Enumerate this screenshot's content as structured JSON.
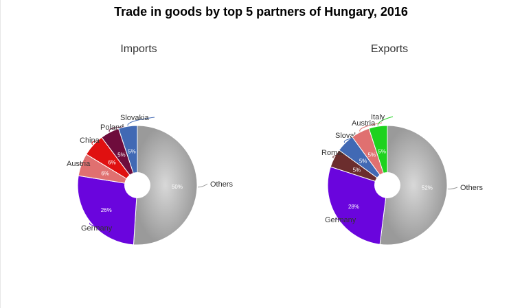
{
  "title": "Trade in goods by top 5 partners of Hungary, 2016",
  "colors": {
    "Others": "#a9a9a9",
    "Germany": "#6a05dd",
    "Austria": "#e07070",
    "China": "#e01010",
    "Poland": "#6e0c3c",
    "Slovakia": "#4169b4",
    "Romania": "#6b2d2d",
    "Italy": "#1ed21e"
  },
  "chart_data": [
    {
      "type": "pie",
      "title": "Imports",
      "slices": [
        {
          "label": "Others",
          "value": 50,
          "text": "50%"
        },
        {
          "label": "Germany",
          "value": 26,
          "text": "26%"
        },
        {
          "label": "Austria",
          "value": 6,
          "text": "6%"
        },
        {
          "label": "China",
          "value": 6,
          "text": "6%"
        },
        {
          "label": "Poland",
          "value": 5,
          "text": "5%"
        },
        {
          "label": "Slovakia",
          "value": 5,
          "text": "5%"
        }
      ]
    },
    {
      "type": "pie",
      "title": "Exports",
      "slices": [
        {
          "label": "Others",
          "value": 52,
          "text": "52%"
        },
        {
          "label": "Germany",
          "value": 28,
          "text": "28%"
        },
        {
          "label": "Romania",
          "value": 5,
          "text": "5%"
        },
        {
          "label": "Slovakia",
          "value": 5,
          "text": "5%"
        },
        {
          "label": "Austria",
          "value": 5,
          "text": "5%"
        },
        {
          "label": "Italy",
          "value": 5,
          "text": "5%"
        }
      ]
    }
  ]
}
